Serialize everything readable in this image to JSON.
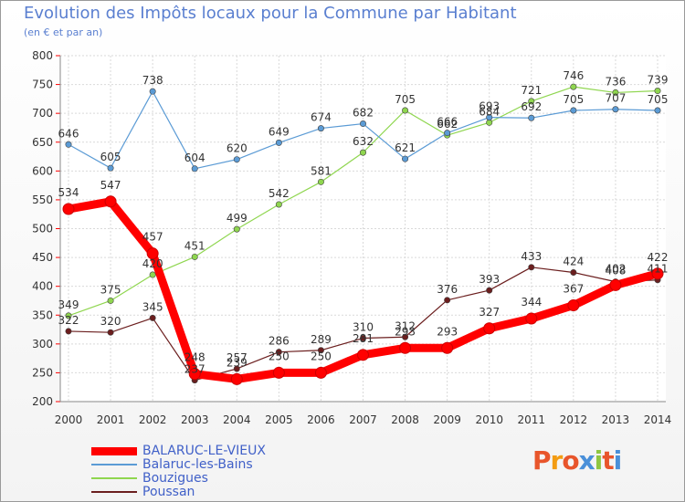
{
  "chart_data": {
    "type": "line",
    "title": "Evolution des Impôts locaux pour la Commune par Habitant",
    "subtitle": "(en € et par an)",
    "x": [
      "2000",
      "2001",
      "2002",
      "2003",
      "2004",
      "2005",
      "2006",
      "2007",
      "2008",
      "2009",
      "2010",
      "2011",
      "2012",
      "2013",
      "2014"
    ],
    "ylim": [
      200,
      800
    ],
    "yticks": [
      "200",
      "250",
      "300",
      "350",
      "400",
      "450",
      "500",
      "550",
      "600",
      "650",
      "700",
      "750",
      "800"
    ],
    "series": [
      {
        "name": "BALARUC-LE-VIEUX",
        "color": "#ff0000",
        "values": [
          534,
          547,
          457,
          248,
          239,
          250,
          250,
          281,
          293,
          293,
          327,
          344,
          367,
          402,
          422
        ],
        "labels": [
          "534",
          "547",
          "457",
          "248",
          "239",
          "250",
          "250",
          "281",
          "293",
          "293",
          "327",
          "344",
          "367",
          "402",
          "422"
        ]
      },
      {
        "name": "Balaruc-les-Bains",
        "color": "#5b9bd5",
        "values": [
          646,
          605,
          738,
          604,
          620,
          649,
          674,
          682,
          621,
          666,
          693,
          692,
          705,
          707,
          705
        ],
        "labels": [
          "646",
          "605",
          "738",
          "604",
          "620",
          "649",
          "674",
          "682",
          "621",
          "666",
          "693",
          "692",
          "705",
          "707",
          "705"
        ]
      },
      {
        "name": "Bouzigues",
        "color": "#8fd64f",
        "values": [
          349,
          375,
          420,
          451,
          499,
          542,
          581,
          632,
          705,
          662,
          684,
          721,
          746,
          736,
          739
        ],
        "labels": [
          "349",
          "375",
          "420",
          "451",
          "499",
          "542",
          "581",
          "632",
          "705",
          "662",
          "684",
          "721",
          "746",
          "736",
          "739"
        ]
      },
      {
        "name": "Poussan",
        "color": "#6b1e1e",
        "values": [
          322,
          320,
          345,
          237,
          257,
          286,
          289,
          310,
          312,
          376,
          393,
          433,
          424,
          408,
          411
        ],
        "labels": [
          "322",
          "320",
          "345",
          "237",
          "257",
          "286",
          "289",
          "310",
          "312",
          "376",
          "393",
          "433",
          "424",
          "408",
          "411"
        ]
      }
    ],
    "legend": "bottom-left"
  },
  "logo": {
    "text": "Proxiti",
    "colors": [
      "#e8552b",
      "#f39c12",
      "#e8552b",
      "#4a90d9",
      "#8fc641",
      "#e8552b",
      "#4a90d9"
    ]
  }
}
